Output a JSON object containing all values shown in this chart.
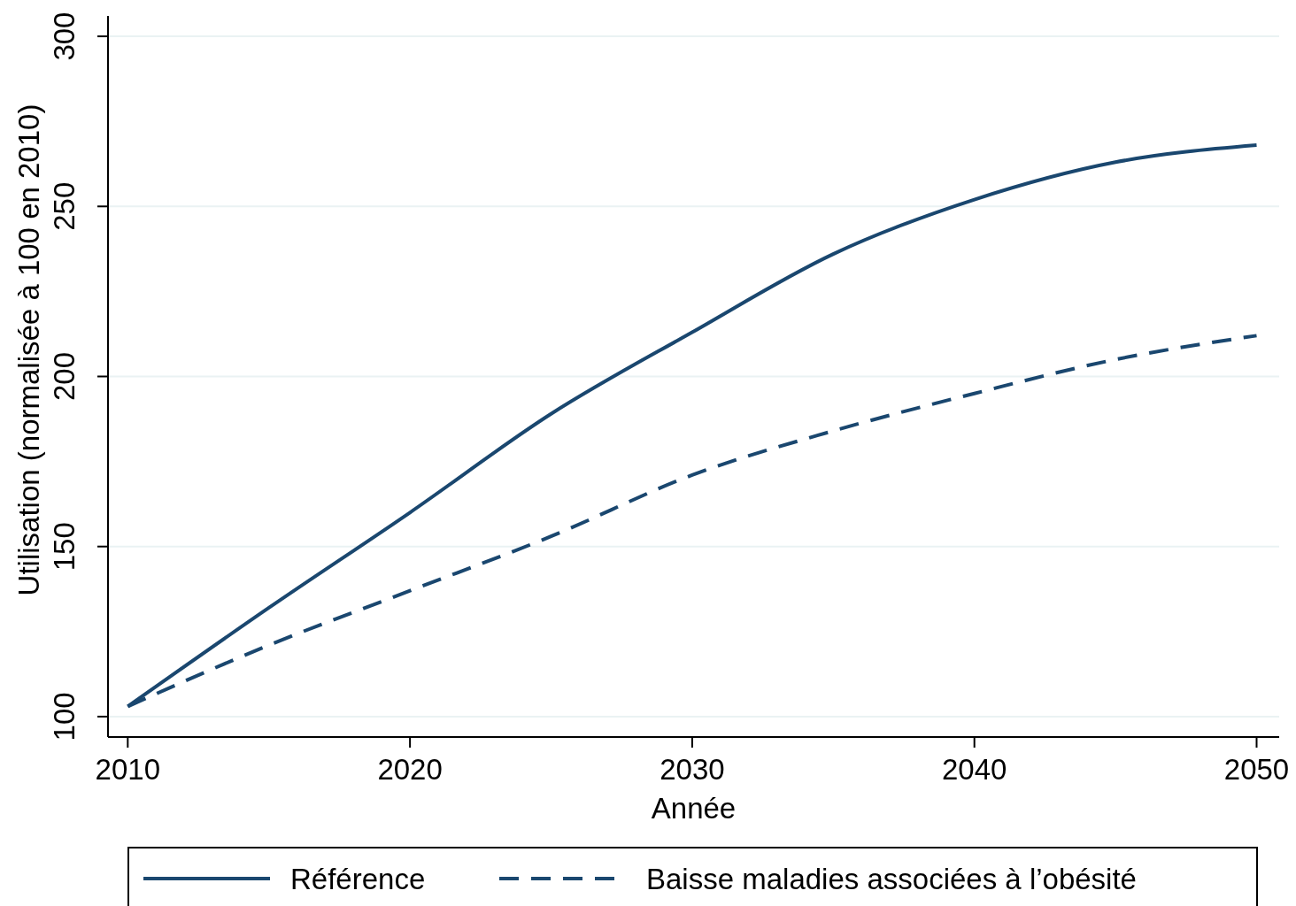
{
  "chart_data": {
    "type": "line",
    "xlabel": "Année",
    "ylabel": "Utilisation (normalisée à 100 en 2010)",
    "x": [
      2010,
      2015,
      2020,
      2025,
      2030,
      2035,
      2040,
      2045,
      2050
    ],
    "series": [
      {
        "name": "Référence",
        "color": "#1a476f",
        "line_style": "solid",
        "values": [
          103,
          132,
          160,
          189,
          213,
          236,
          252,
          263,
          268
        ]
      },
      {
        "name": "Baisse maladies associées à l’obésité",
        "color": "#1a476f",
        "line_style": "dashed",
        "values": [
          103,
          121,
          137,
          153,
          171,
          184,
          195,
          205,
          212
        ]
      }
    ],
    "xlim": [
      2009.3,
      2050.8
    ],
    "ylim": [
      94,
      306
    ],
    "xticks": [
      2010,
      2020,
      2030,
      2040,
      2050
    ],
    "yticks": [
      100,
      150,
      200,
      250,
      300
    ],
    "grid": "y",
    "legend": "bottom",
    "marker": "none"
  }
}
